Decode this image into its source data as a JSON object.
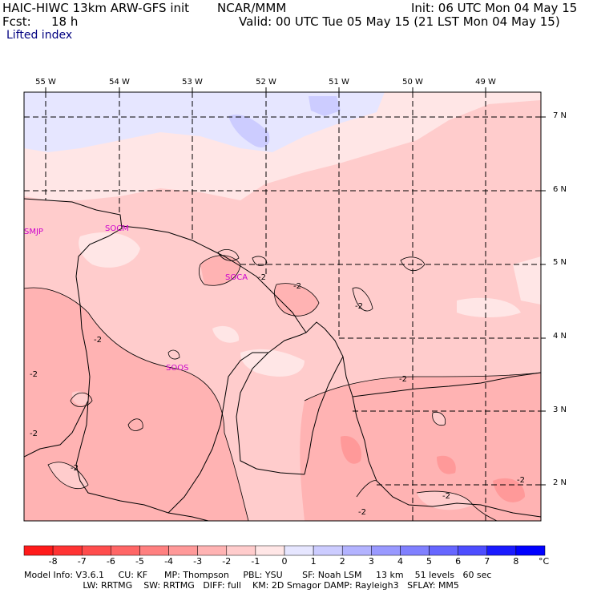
{
  "header": {
    "model": "HAIC-HIWC 13km ARW-GFS init",
    "org": "NCAR/MMM",
    "init": "Init: 06 UTC Mon 04 May 15",
    "fcst_label": "Fcst:",
    "fcst_value": "18 h",
    "valid": "Valid: 00 UTC Tue 05 May 15 (21 LST Mon 04 May 15)",
    "field": "Lifted index"
  },
  "map": {
    "lon_labels": [
      "55 W",
      "54 W",
      "53 W",
      "52 W",
      "51 W",
      "50 W",
      "49 W"
    ],
    "lat_labels": [
      "7 N",
      "6 N",
      "5 N",
      "4 N",
      "3 N",
      "2 N"
    ],
    "stations": [
      "SMJP",
      "SOCM",
      "SOCA",
      "SOOS"
    ],
    "contour_label": "-2"
  },
  "colorbar": {
    "labels": [
      "-8",
      "-7",
      "-6",
      "-5",
      "-4",
      "-3",
      "-2",
      "-1",
      "0",
      "1",
      "2",
      "3",
      "4",
      "5",
      "6",
      "7",
      "8"
    ],
    "unit": "°C",
    "colors": [
      "#ff1a1a",
      "#ff3333",
      "#ff4d4d",
      "#ff6666",
      "#ff8080",
      "#ff9999",
      "#ffb3b3",
      "#ffcccc",
      "#ffe6e6",
      "#e6e6ff",
      "#ccccff",
      "#b3b3ff",
      "#9999ff",
      "#8080ff",
      "#6666ff",
      "#4d4dff",
      "#1a1aff",
      "#0000ff"
    ]
  },
  "footer": {
    "line1": "Model Info: V3.6.1     CU: KF      MP: Thompson     PBL: YSU       SF: Noah LSM     13 km    51 levels   60 sec",
    "line2": "                     LW: RRTMG    SW: RRTMG   DIFF: full    KM: 2D Smagor DAMP: Rayleigh3   SFLAY: MM5"
  }
}
